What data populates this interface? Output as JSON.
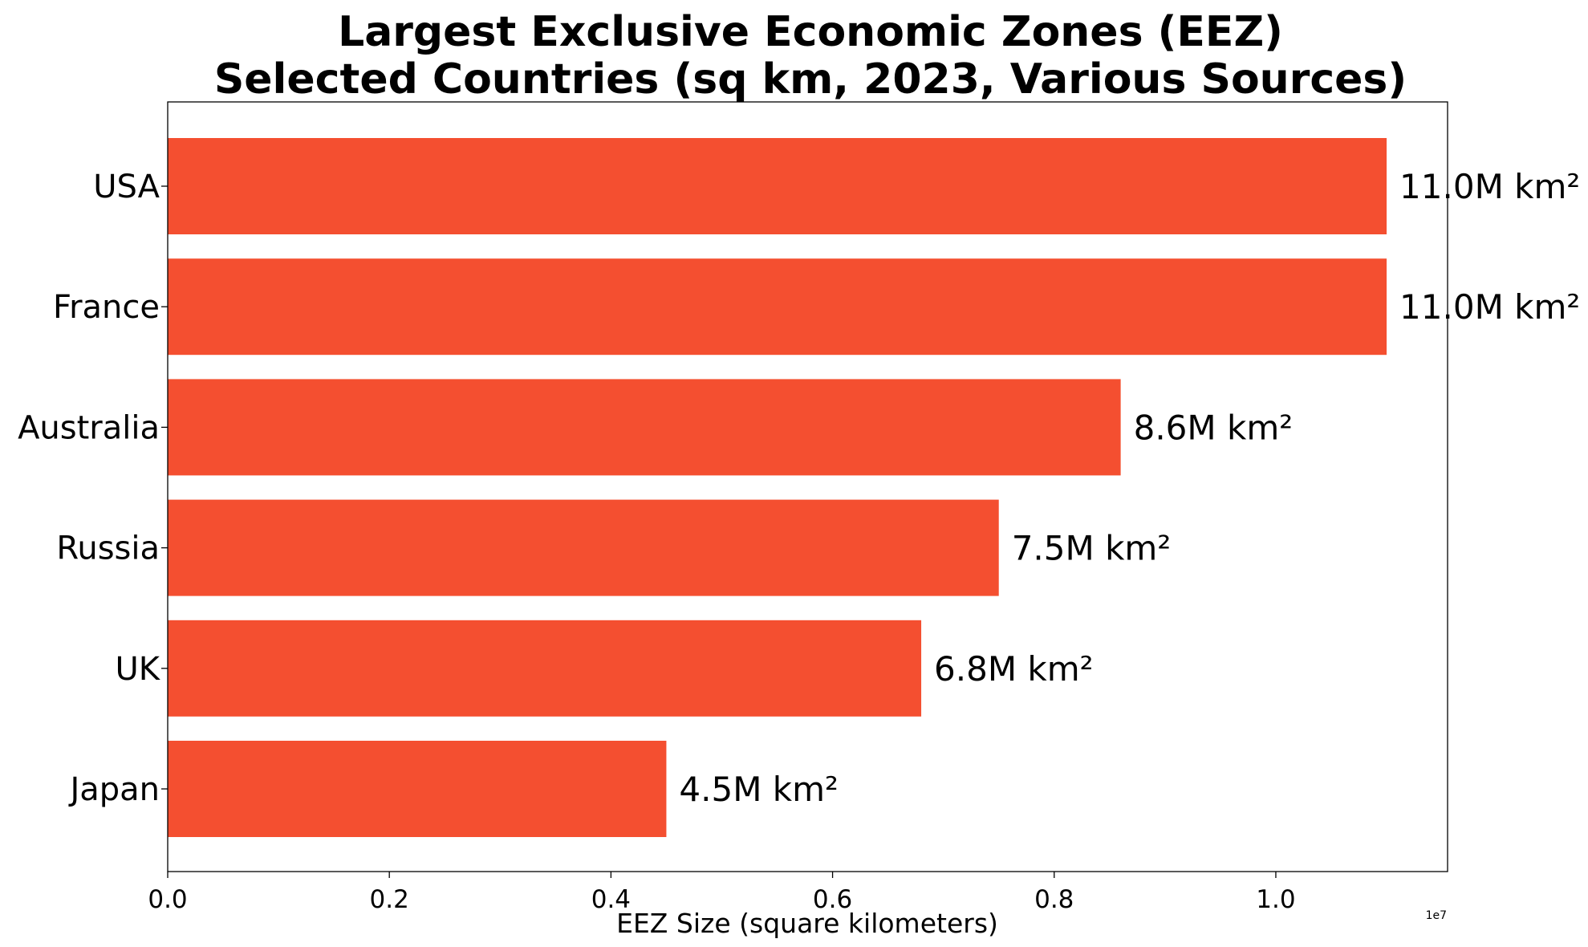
{
  "chart_data": {
    "type": "bar",
    "orientation": "horizontal",
    "title": [
      "Largest Exclusive Economic Zones (EEZ)",
      "Selected Countries (sq km, 2023, Various Sources)"
    ],
    "xlabel": "EEZ Size (square kilometers)",
    "ylabel": "",
    "x_exponent_label": "1e7",
    "categories": [
      "USA",
      "France",
      "Australia",
      "Russia",
      "UK",
      "Japan"
    ],
    "values": [
      11000000,
      11000000,
      8600000,
      7500000,
      6800000,
      4500000
    ],
    "data_labels": [
      "11.0M km²",
      "11.0M km²",
      "8.6M km²",
      "7.5M km²",
      "6.8M km²",
      "4.5M km²"
    ],
    "xlim": [
      0,
      11550000
    ],
    "x_ticks": [
      0,
      2000000,
      4000000,
      6000000,
      8000000,
      10000000
    ],
    "x_tick_labels": [
      "0.0",
      "0.2",
      "0.4",
      "0.6",
      "0.8",
      "1.0"
    ],
    "grid": false,
    "legend": "none",
    "bar_color": "#f44f30"
  }
}
